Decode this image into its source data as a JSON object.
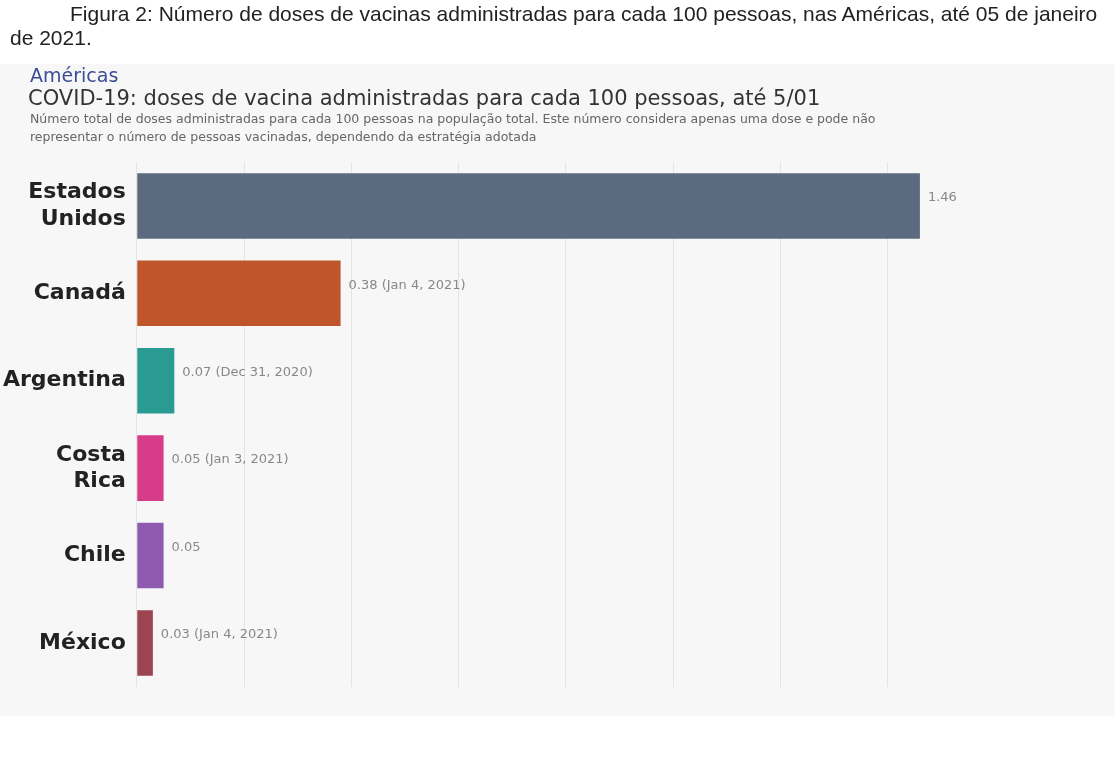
{
  "chart_data": {
    "type": "bar",
    "orientation": "horizontal",
    "title": "COVID-19: doses de vacina administradas para cada 100 pessoas, até 5/01",
    "subtitle": "Número total de doses administradas para cada 100 pessoas na população total. Este número considera apenas uma dose e pode não representar o número de pessoas vacinadas, dependendo da estratégia adotada",
    "annotations": [
      "Figura 2: Número de doses de vacinas administradas para cada 100 pessoas, nas Américas, até 05 de janeiro de 2021.",
      "Américas"
    ],
    "categories": [
      "Estados Unidos",
      "Canadá",
      "Argentina",
      "Costa Rica",
      "Chile",
      "México"
    ],
    "values": [
      1.46,
      0.38,
      0.07,
      0.05,
      0.05,
      0.03
    ],
    "colors": [
      "#5b6a7f",
      "#c0542a",
      "#2a9b93",
      "#d63c8a",
      "#8e5bb0",
      "#9c4450"
    ],
    "value_labels": [
      "1.46",
      "0.38 (Jan 4, 2021)",
      "0.07 (Dec 31, 2020)",
      "0.05 (Jan 3, 2021)",
      "0.05",
      "0.03 (Jan 4, 2021)"
    ],
    "xticks": [
      {
        "value": 0,
        "label": null
      },
      {
        "value": 0.2,
        "label": null
      },
      {
        "value": 0.4,
        "label": null
      },
      {
        "value": 0.6,
        "label": null
      },
      {
        "value": 0.8,
        "label": null
      },
      {
        "value": 1,
        "label": null
      },
      {
        "value": 1.2,
        "label": null
      },
      {
        "value": 1.4,
        "label": null
      }
    ],
    "grid": "x",
    "tick_labels": "y",
    "legend": false
  }
}
